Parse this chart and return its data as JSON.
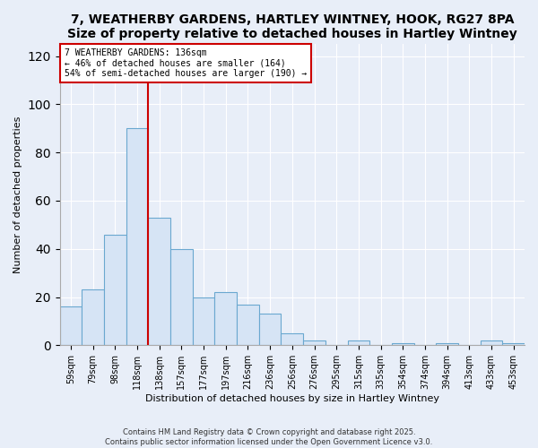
{
  "title1": "7, WEATHERBY GARDENS, HARTLEY WINTNEY, HOOK, RG27 8PA",
  "title2": "Size of property relative to detached houses in Hartley Wintney",
  "xlabel": "Distribution of detached houses by size in Hartley Wintney",
  "ylabel": "Number of detached properties",
  "bar_labels": [
    "59sqm",
    "79sqm",
    "98sqm",
    "118sqm",
    "138sqm",
    "157sqm",
    "177sqm",
    "197sqm",
    "216sqm",
    "236sqm",
    "256sqm",
    "276sqm",
    "295sqm",
    "315sqm",
    "335sqm",
    "354sqm",
    "374sqm",
    "394sqm",
    "413sqm",
    "433sqm",
    "453sqm"
  ],
  "bar_values": [
    16,
    23,
    46,
    90,
    53,
    40,
    20,
    22,
    17,
    13,
    5,
    2,
    0,
    2,
    0,
    1,
    0,
    1,
    0,
    2,
    1
  ],
  "bar_color": "#d6e4f5",
  "bar_edge_color": "#6aa8d0",
  "vline_color": "#cc0000",
  "vline_x_idx": 3.5,
  "annotation_title": "7 WEATHERBY GARDENS: 136sqm",
  "annotation_line1": "← 46% of detached houses are smaller (164)",
  "annotation_line2": "54% of semi-detached houses are larger (190) →",
  "annotation_box_facecolor": "#ffffff",
  "annotation_box_edgecolor": "#cc0000",
  "ylim": [
    0,
    125
  ],
  "yticks": [
    0,
    20,
    40,
    60,
    80,
    100,
    120
  ],
  "footer1": "Contains HM Land Registry data © Crown copyright and database right 2025.",
  "footer2": "Contains public sector information licensed under the Open Government Licence v3.0.",
  "fig_facecolor": "#e8eef8",
  "ax_facecolor": "#e8eef8",
  "grid_color": "#ffffff",
  "title_fontsize": 10,
  "label_fontsize": 8,
  "tick_fontsize": 7,
  "footer_fontsize": 6
}
